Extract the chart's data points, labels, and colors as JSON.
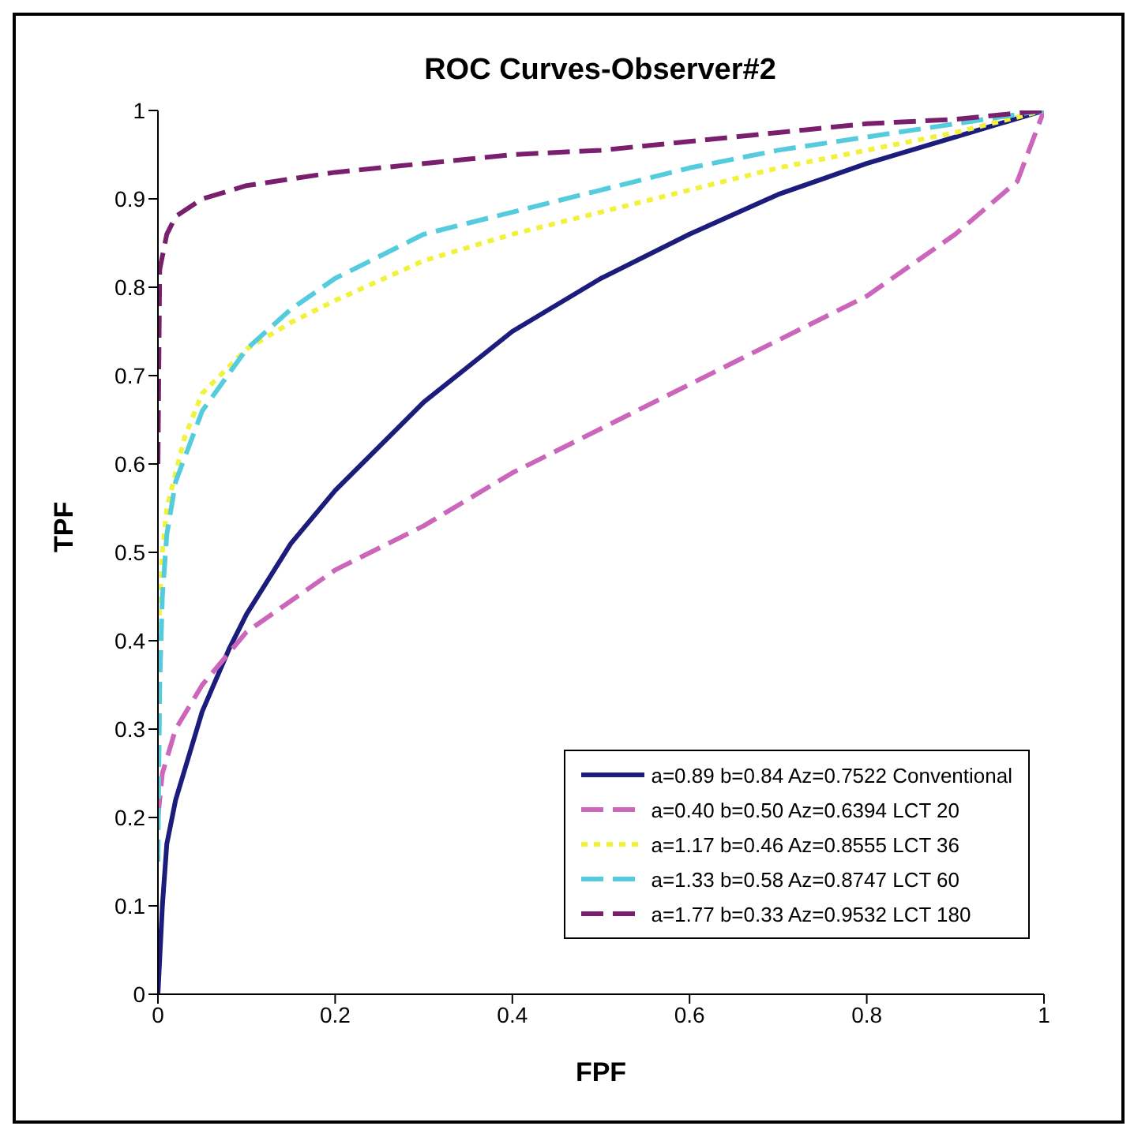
{
  "chart_data": {
    "type": "line",
    "title": "ROC Curves-Observer#2",
    "xlabel": "FPF",
    "ylabel": "TPF",
    "xlim": [
      0,
      1
    ],
    "ylim": [
      0,
      1
    ],
    "xticks": [
      0,
      0.2,
      0.4,
      0.6,
      0.8,
      1
    ],
    "yticks": [
      0,
      0.1,
      0.2,
      0.3,
      0.4,
      0.5,
      0.6,
      0.7,
      0.8,
      0.9,
      1
    ],
    "grid": false,
    "legend": "bottom right",
    "marker": "none",
    "series": [
      {
        "name": "a=0.89 b=0.84 Az=0.7522 Conventional",
        "color": "#1c1c7c",
        "line_style": "solid",
        "x": [
          0,
          0.005,
          0.01,
          0.02,
          0.05,
          0.08,
          0.1,
          0.15,
          0.2,
          0.3,
          0.4,
          0.5,
          0.6,
          0.7,
          0.8,
          0.9,
          1
        ],
        "values": [
          0,
          0.1,
          0.17,
          0.22,
          0.32,
          0.39,
          0.43,
          0.51,
          0.57,
          0.67,
          0.75,
          0.81,
          0.86,
          0.905,
          0.94,
          0.97,
          1
        ]
      },
      {
        "name": "a=0.40 b=0.50 Az=0.6394 LCT 20",
        "color": "#cc66bb",
        "line_style": "dashed",
        "x": [
          0,
          0.005,
          0.02,
          0.05,
          0.1,
          0.2,
          0.3,
          0.4,
          0.5,
          0.6,
          0.7,
          0.8,
          0.9,
          0.97,
          1
        ],
        "values": [
          0.2,
          0.25,
          0.3,
          0.35,
          0.41,
          0.48,
          0.53,
          0.59,
          0.64,
          0.69,
          0.74,
          0.79,
          0.86,
          0.92,
          1
        ]
      },
      {
        "name": "a=1.17 b=0.46 Az=0.8555 LCT 36",
        "color": "#f2f23c",
        "line_style": "dotted",
        "x": [
          0,
          0.005,
          0.01,
          0.03,
          0.05,
          0.1,
          0.15,
          0.2,
          0.3,
          0.4,
          0.5,
          0.6,
          0.7,
          0.8,
          0.9,
          1
        ],
        "values": [
          0.4,
          0.5,
          0.55,
          0.63,
          0.68,
          0.73,
          0.76,
          0.785,
          0.83,
          0.86,
          0.885,
          0.91,
          0.935,
          0.955,
          0.975,
          1
        ]
      },
      {
        "name": "a=1.33 b=0.58 Az=0.8747 LCT 60",
        "color": "#55ccdd",
        "line_style": "dashed",
        "x": [
          0,
          0.002,
          0.005,
          0.01,
          0.02,
          0.05,
          0.1,
          0.15,
          0.2,
          0.3,
          0.4,
          0.5,
          0.6,
          0.7,
          0.8,
          0.9,
          1
        ],
        "values": [
          0.15,
          0.35,
          0.45,
          0.52,
          0.58,
          0.66,
          0.73,
          0.775,
          0.81,
          0.86,
          0.885,
          0.91,
          0.935,
          0.955,
          0.97,
          0.985,
          1
        ]
      },
      {
        "name": "a=1.77 b=0.33 Az=0.9532 LCT 180",
        "color": "#7a1f6e",
        "line_style": "dashed",
        "x": [
          0,
          0.002,
          0.01,
          0.02,
          0.05,
          0.1,
          0.2,
          0.3,
          0.4,
          0.5,
          0.6,
          0.7,
          0.8,
          0.9,
          1
        ],
        "values": [
          0.6,
          0.82,
          0.86,
          0.88,
          0.9,
          0.915,
          0.93,
          0.94,
          0.95,
          0.955,
          0.965,
          0.975,
          0.985,
          0.99,
          1
        ]
      }
    ]
  }
}
